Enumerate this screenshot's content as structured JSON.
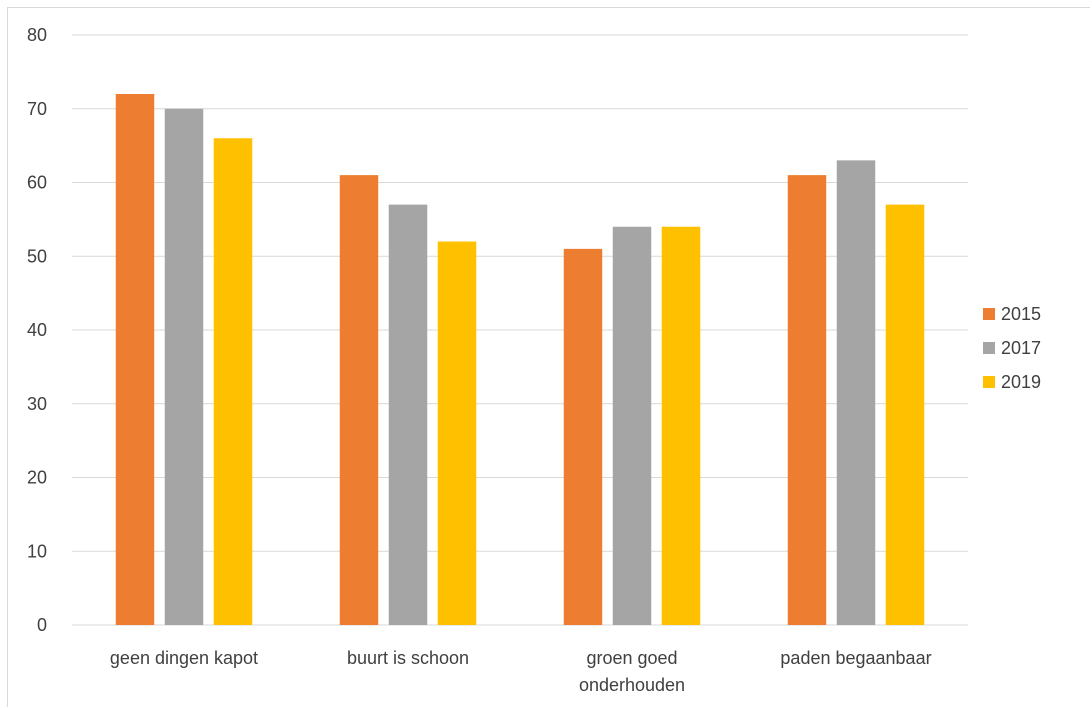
{
  "chart_data": {
    "type": "bar",
    "title": "",
    "xlabel": "",
    "ylabel": "",
    "ylim": [
      0,
      80
    ],
    "yticks": [
      0,
      10,
      20,
      30,
      40,
      50,
      60,
      70,
      80
    ],
    "grid": true,
    "legend_position": "right",
    "categories": [
      [
        "geen dingen kapot"
      ],
      [
        "buurt is schoon"
      ],
      [
        "groen goed",
        "onderhouden"
      ],
      [
        "paden begaanbaar"
      ]
    ],
    "series": [
      {
        "name": "2015",
        "color": "#ED7D31",
        "values": [
          72,
          61,
          51,
          61
        ]
      },
      {
        "name": "2017",
        "color": "#A5A5A5",
        "values": [
          70,
          57,
          54,
          63
        ]
      },
      {
        "name": "2019",
        "color": "#FFC000",
        "values": [
          66,
          52,
          54,
          57
        ]
      }
    ]
  }
}
